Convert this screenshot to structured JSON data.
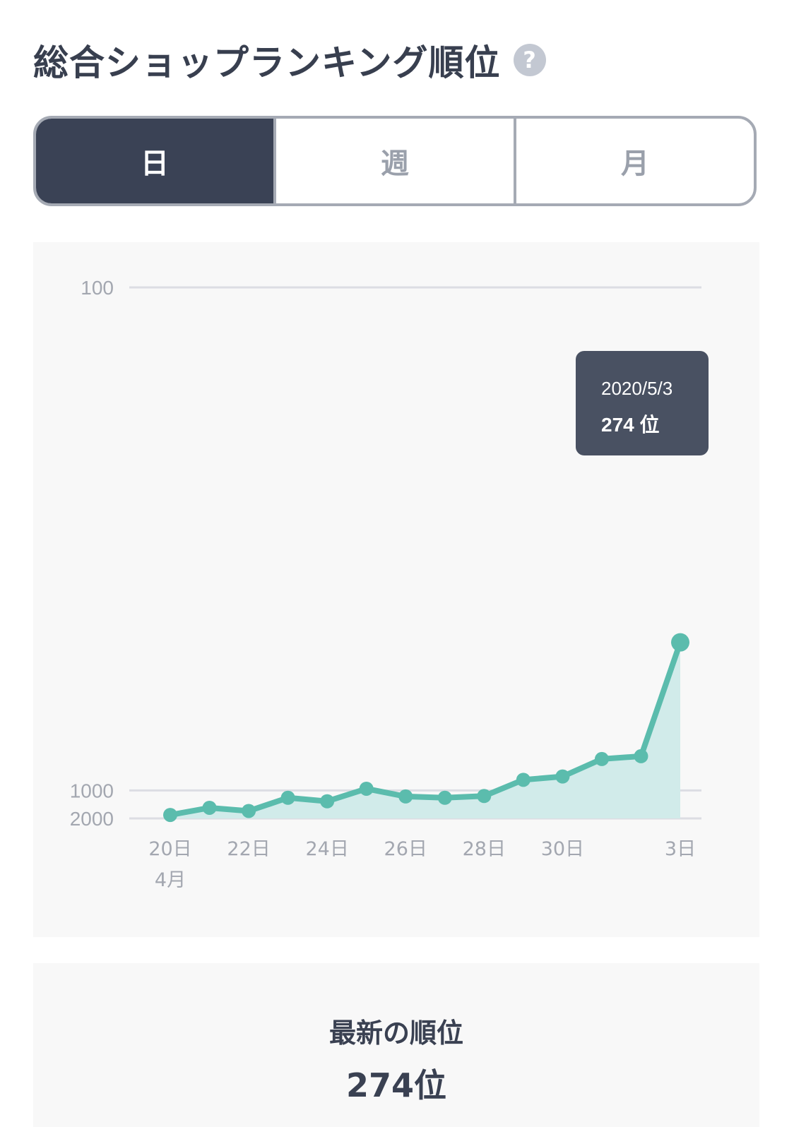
{
  "header": {
    "title": "総合ショップランキング順位",
    "help_icon": "?"
  },
  "tabs": [
    {
      "label": "日",
      "active": true
    },
    {
      "label": "週",
      "active": false
    },
    {
      "label": "月",
      "active": false
    }
  ],
  "colors": {
    "line": "#5bbcad",
    "area": "#d1ebea",
    "dark": "#3a4255",
    "grid": "#dcdde3",
    "tick": "#a3a7b0"
  },
  "tooltip": {
    "date": "2020/5/3",
    "value": "274 位"
  },
  "latest": {
    "label": "最新の順位",
    "value": "274位"
  },
  "chart_data": {
    "type": "area",
    "title": "",
    "xlabel": "",
    "ylabel": "",
    "y_reversed": true,
    "y_scale": "reciprocal",
    "ylim": [
      100,
      2000
    ],
    "yticks": [
      {
        "value": 100,
        "label": "100"
      },
      {
        "value": 1000,
        "label": "1000"
      },
      {
        "value": 2000,
        "label": "2000"
      }
    ],
    "x": [
      "4/20",
      "4/21",
      "4/22",
      "4/23",
      "4/24",
      "4/25",
      "4/26",
      "4/27",
      "4/28",
      "4/29",
      "4/30",
      "5/1",
      "5/2",
      "5/3"
    ],
    "xticks": [
      {
        "index": 0,
        "label": "20日",
        "sublabel": "4月"
      },
      {
        "index": 2,
        "label": "22日"
      },
      {
        "index": 4,
        "label": "24日"
      },
      {
        "index": 6,
        "label": "26日"
      },
      {
        "index": 8,
        "label": "28日"
      },
      {
        "index": 10,
        "label": "30日"
      },
      {
        "index": 13,
        "label": "3日"
      }
    ],
    "series": [
      {
        "values": [
          1780,
          1450,
          1580,
          1150,
          1240,
          970,
          1120,
          1150,
          1110,
          840,
          800,
          640,
          620,
          274
        ]
      }
    ],
    "highlight_index": 13,
    "grid": true,
    "legend": "none"
  }
}
